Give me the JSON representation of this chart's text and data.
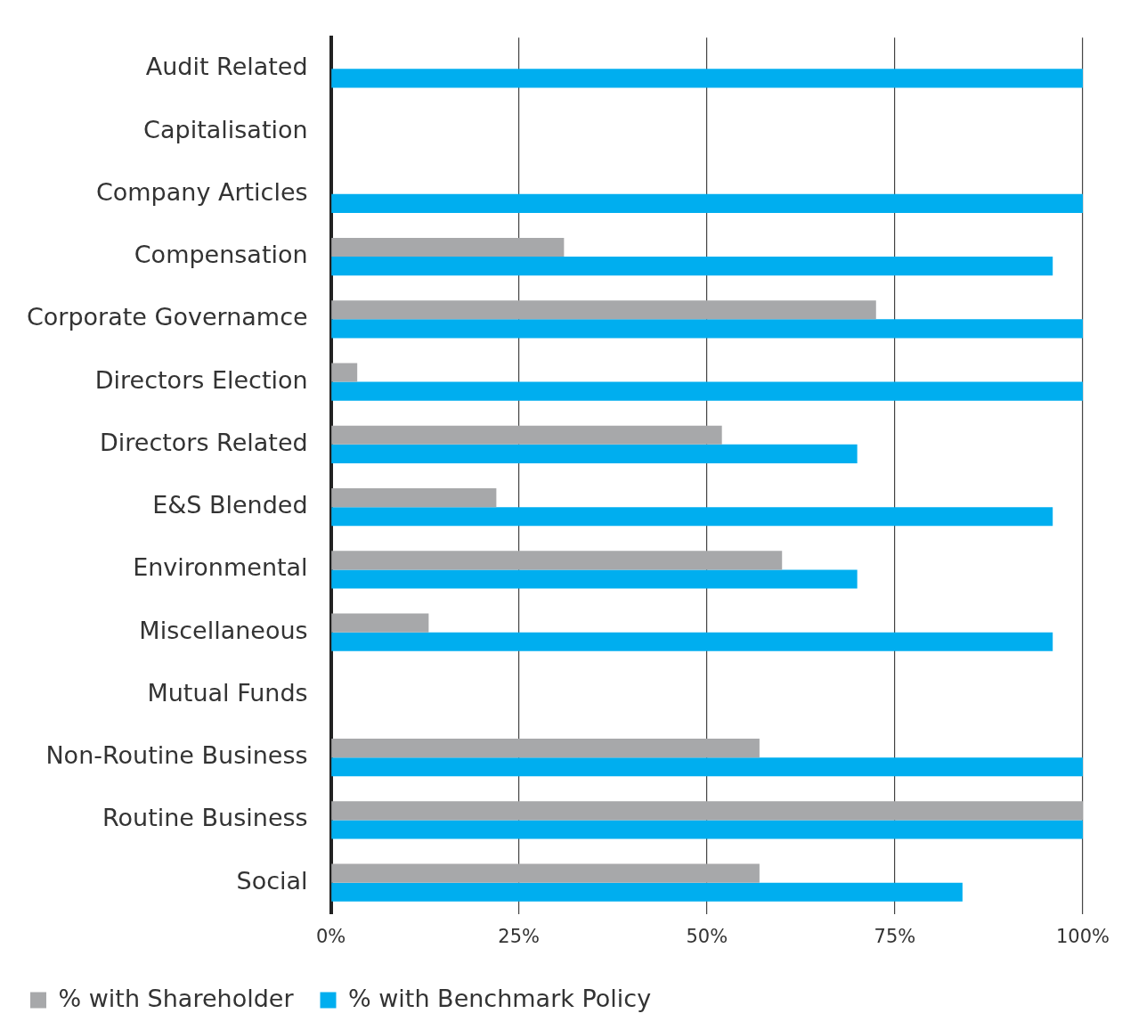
{
  "chart_data": {
    "type": "bar",
    "orientation": "horizontal",
    "categories": [
      "Audit Related",
      "Capitalisation",
      "Company Articles",
      "Compensation",
      "Corporate Governamce",
      "Directors Election",
      "Directors Related",
      "E&S Blended",
      "Environmental",
      "Miscellaneous",
      "Mutual Funds",
      "Non-Routine Business",
      "Routine Business",
      "Social"
    ],
    "series": [
      {
        "name": "% with Shareholder",
        "color": "#a7a8aa",
        "values": [
          0,
          0,
          0,
          31,
          72.5,
          3.5,
          52,
          22,
          60,
          13,
          0,
          57,
          100,
          57
        ]
      },
      {
        "name": "% with Benchmark Policy",
        "color": "#00aeef",
        "values": [
          100,
          0,
          100,
          96,
          100,
          100,
          70,
          96,
          70,
          96,
          0,
          100,
          100,
          84
        ]
      }
    ],
    "xlim": [
      0,
      100
    ],
    "xticks": [
      {
        "value": 0,
        "label": "0%"
      },
      {
        "value": 25,
        "label": "25%"
      },
      {
        "value": 50,
        "label": "50%"
      },
      {
        "value": 75,
        "label": "75%"
      },
      {
        "value": 100,
        "label": "100%"
      }
    ],
    "grid": "x",
    "legend": "bottom"
  }
}
